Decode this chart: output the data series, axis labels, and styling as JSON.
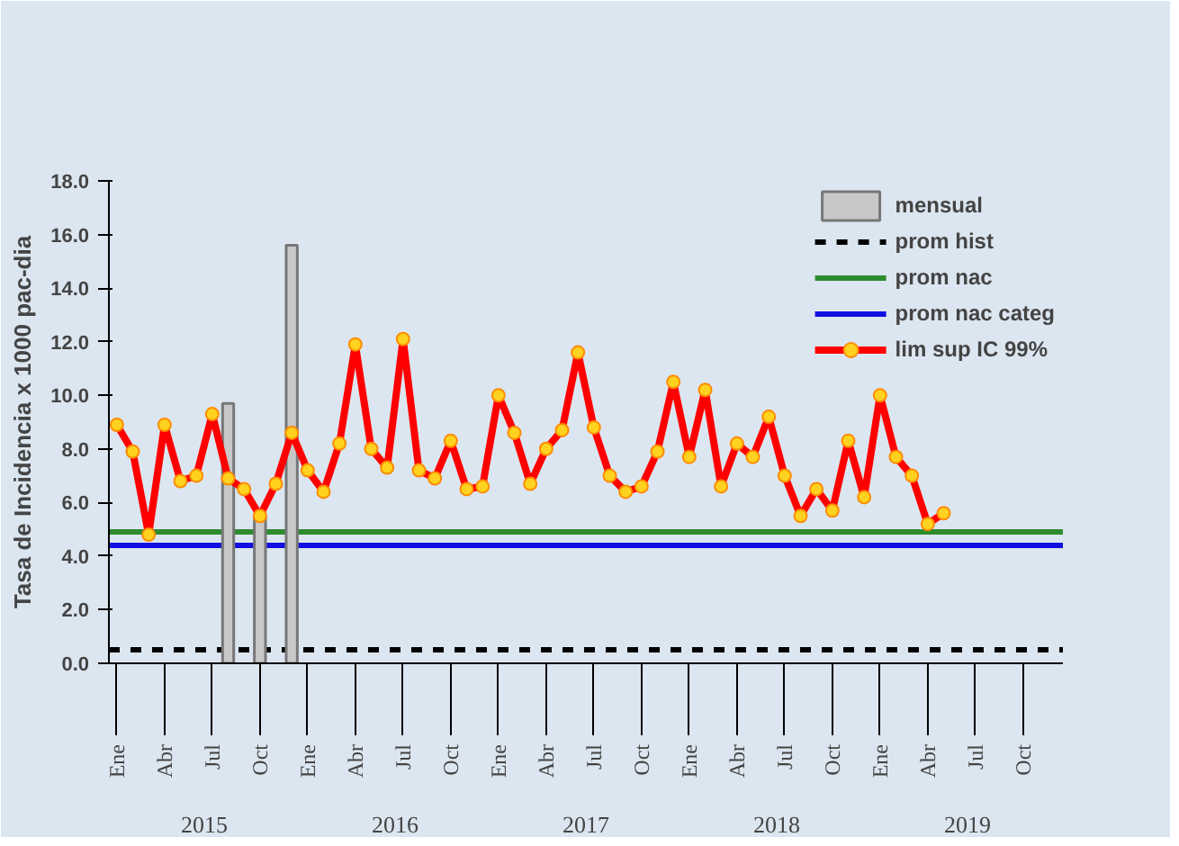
{
  "chart_data": {
    "type": "line",
    "ylabel": "Tasa de Incidencia x 1000 pac-dia",
    "categories": [
      "Ene",
      null,
      null,
      "Abr",
      null,
      null,
      "Jul",
      null,
      null,
      "Oct",
      null,
      null,
      "Ene",
      null,
      null,
      "Abr",
      null,
      null,
      "Jul",
      null,
      null,
      "Oct",
      null,
      null,
      "Ene",
      null,
      null,
      "Abr",
      null,
      null,
      "Jul",
      null,
      null,
      "Oct",
      null,
      null,
      "Ene",
      null,
      null,
      "Abr",
      null,
      null,
      "Jul",
      null,
      null,
      "Oct",
      null,
      null,
      "Ene",
      null,
      null,
      "Abr",
      null,
      null,
      "Jul",
      null,
      null,
      "Oct",
      null,
      null
    ],
    "annotations": [
      "2015",
      "2016",
      "2017",
      "2018",
      "2019"
    ],
    "series": [
      {
        "name": "mensual",
        "type": "bar",
        "color": "#c8c8c8",
        "values": [
          null,
          null,
          null,
          null,
          null,
          null,
          null,
          9.7,
          null,
          5.5,
          null,
          15.6,
          null,
          null,
          null,
          null,
          null,
          null,
          null,
          null,
          null,
          null,
          null,
          null,
          null,
          null,
          null,
          null,
          null,
          null,
          null,
          null,
          null,
          null,
          null,
          null,
          null,
          null,
          null,
          null,
          null,
          null,
          null,
          null,
          null,
          null,
          null,
          null,
          null,
          null,
          null,
          null,
          null,
          null,
          null,
          null,
          null,
          null,
          null,
          null
        ]
      },
      {
        "name": "lim sup IC 99%",
        "color": "#ff0000",
        "values": [
          8.9,
          7.9,
          4.8,
          8.9,
          6.8,
          7.0,
          9.3,
          6.9,
          6.5,
          5.5,
          6.7,
          8.6,
          7.2,
          6.4,
          8.2,
          11.9,
          8.0,
          7.3,
          12.1,
          7.2,
          6.9,
          8.3,
          6.5,
          6.6,
          10.0,
          8.6,
          6.7,
          8.0,
          8.7,
          11.6,
          8.8,
          7.0,
          6.4,
          6.6,
          7.9,
          10.5,
          7.7,
          10.2,
          6.6,
          8.2,
          7.7,
          9.2,
          7.0,
          5.5,
          6.5,
          5.7,
          8.3,
          6.2,
          10.0,
          7.7,
          7.0,
          5.2,
          5.6,
          null,
          null,
          null,
          null,
          null,
          null,
          null
        ]
      }
    ],
    "ref_lines": [
      {
        "axis": "y",
        "value": 0.5,
        "label": "prom hist",
        "color": "#000000",
        "line_style": "dashed"
      },
      {
        "axis": "y",
        "value": 4.9,
        "label": "prom nac",
        "color": "#2e8b2e",
        "line_style": "solid"
      },
      {
        "axis": "y",
        "value": 4.4,
        "label": "prom nac categ",
        "color": "#1010e0",
        "line_style": "solid"
      }
    ],
    "ylim": [
      0,
      18
    ],
    "yticks": [
      {
        "value": 0,
        "label": "0.0"
      },
      {
        "value": 2,
        "label": "2.0"
      },
      {
        "value": 4,
        "label": "4.0"
      },
      {
        "value": 6,
        "label": "6.0"
      },
      {
        "value": 8,
        "label": "8.0"
      },
      {
        "value": 10,
        "label": "10.0"
      },
      {
        "value": 12,
        "label": "12.0"
      },
      {
        "value": 14,
        "label": "14.0"
      },
      {
        "value": 16,
        "label": "16.0"
      },
      {
        "value": 18,
        "label": "18.0"
      }
    ],
    "grid": false,
    "legend": "top right",
    "marker": "circle",
    "line_style": "solid"
  }
}
